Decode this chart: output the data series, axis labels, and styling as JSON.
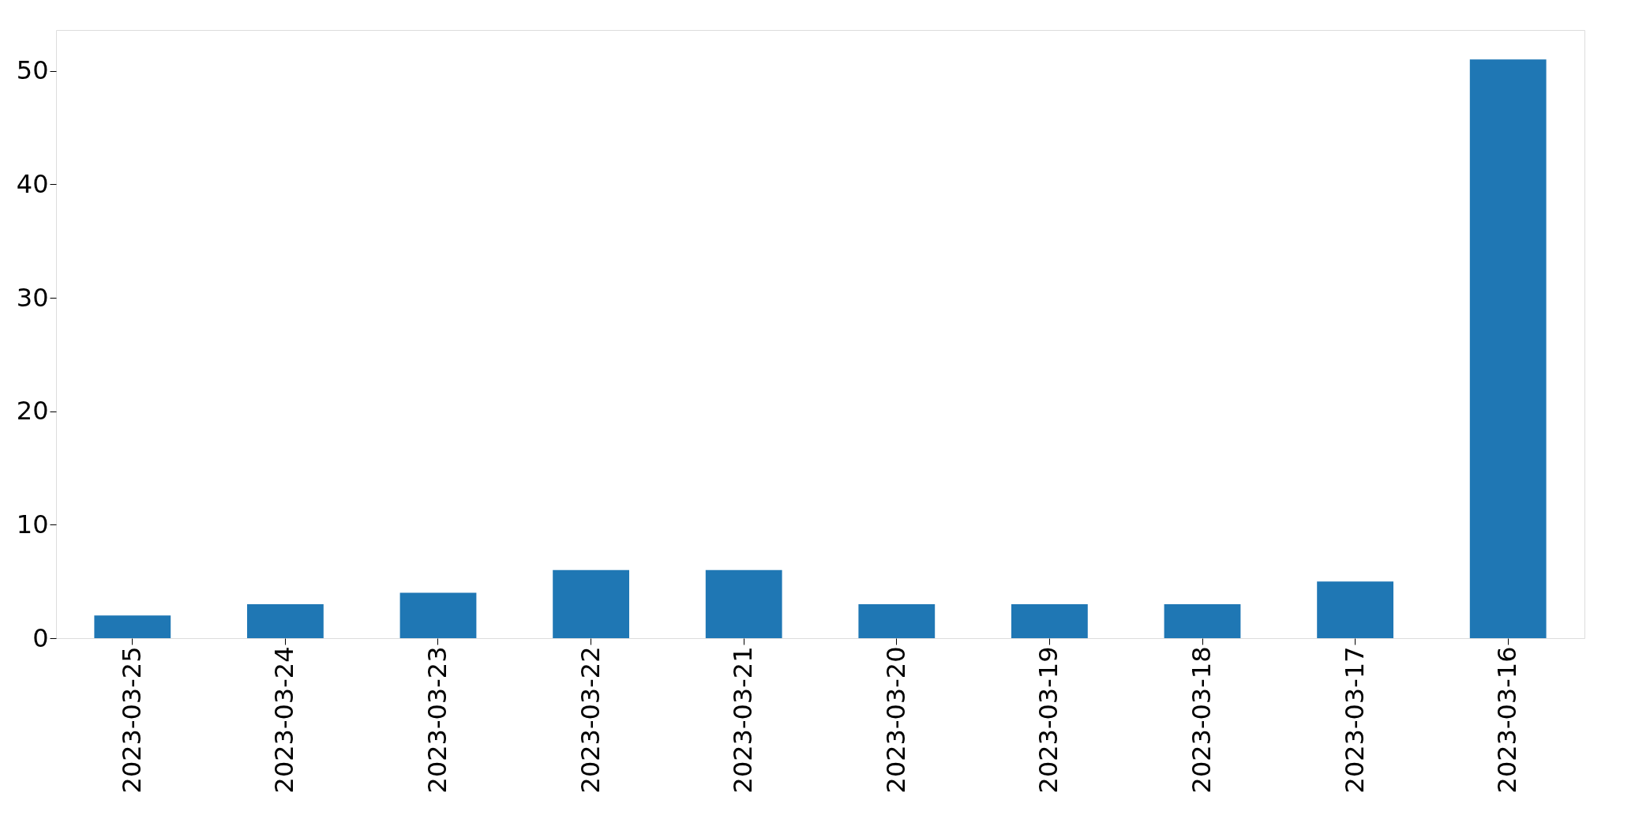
{
  "chart_data": {
    "type": "bar",
    "categories": [
      "2023-03-25",
      "2023-03-24",
      "2023-03-23",
      "2023-03-22",
      "2023-03-21",
      "2023-03-20",
      "2023-03-19",
      "2023-03-18",
      "2023-03-17",
      "2023-03-16"
    ],
    "series": [
      {
        "color": "#1f77b4",
        "values": [
          2,
          3,
          4,
          6,
          6,
          3,
          3,
          3,
          5,
          51
        ]
      }
    ],
    "ylim": [
      0,
      53.6
    ],
    "yticks": [
      0,
      10,
      20,
      30,
      40,
      50
    ],
    "grid": false,
    "legend": false
  }
}
